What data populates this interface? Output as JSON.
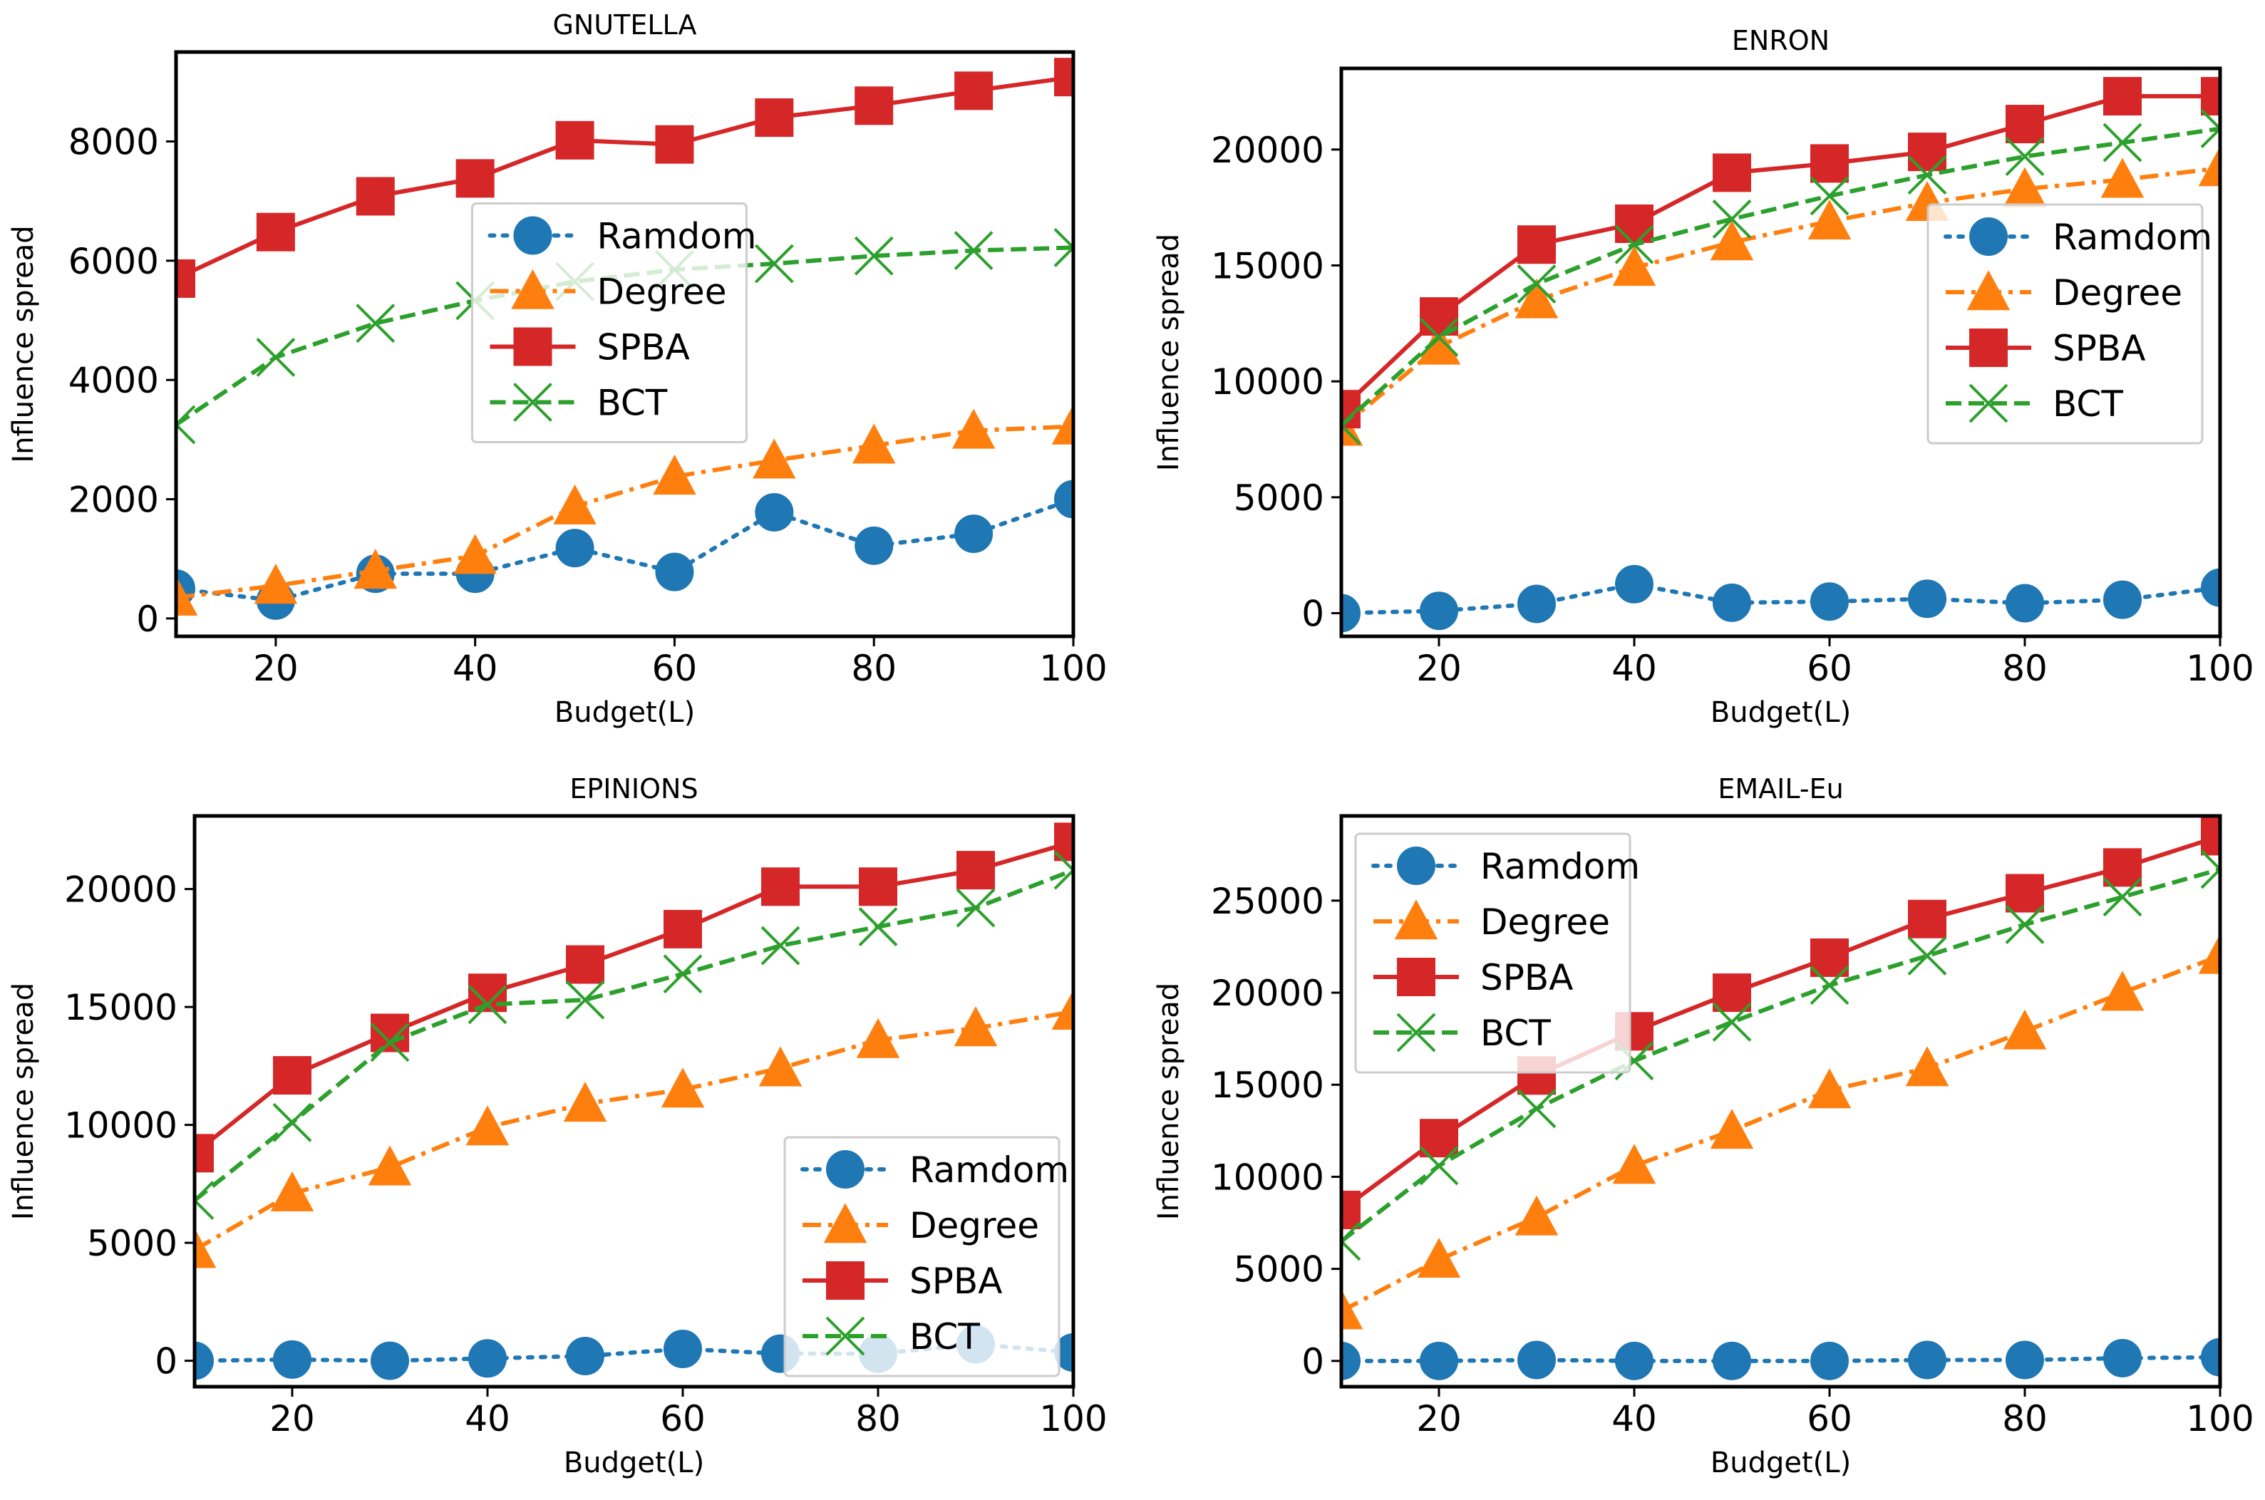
{
  "figure": {
    "background": "#ffffff"
  },
  "legend_series": [
    {
      "key": "random",
      "name": "Ramdom",
      "color": "#1f77b4",
      "marker": "circle",
      "dash": "dotted"
    },
    {
      "key": "degree",
      "name": "Degree",
      "color": "#ff7f0e",
      "marker": "triangle",
      "dash": "dashdot"
    },
    {
      "key": "spba",
      "name": "SPBA",
      "color": "#d62728",
      "marker": "square",
      "dash": "solid"
    },
    {
      "key": "bct",
      "name": "BCT",
      "color": "#2ca02c",
      "marker": "x",
      "dash": "dashed"
    }
  ],
  "chart_data": [
    {
      "type": "line",
      "title": "GNUTELLA",
      "xlabel": "Budget(L)",
      "ylabel": "Influence spread",
      "x": [
        10,
        20,
        30,
        40,
        50,
        60,
        70,
        80,
        90,
        100
      ],
      "xlim": [
        10,
        100
      ],
      "ylim": [
        -300,
        9500
      ],
      "xticks": [
        20,
        40,
        60,
        80,
        100
      ],
      "yticks": [
        0,
        2000,
        4000,
        6000,
        8000
      ],
      "legend_loc": "center",
      "series": [
        {
          "key": "random",
          "name": "Ramdom",
          "values": [
            500,
            300,
            750,
            750,
            1180,
            780,
            1780,
            1220,
            1420,
            2000
          ]
        },
        {
          "key": "degree",
          "name": "Degree",
          "values": [
            350,
            550,
            800,
            1050,
            1880,
            2380,
            2650,
            2900,
            3150,
            3220
          ]
        },
        {
          "key": "spba",
          "name": "SPBA",
          "values": [
            5700,
            6480,
            7080,
            7380,
            8020,
            7950,
            8400,
            8600,
            8850,
            9080
          ]
        },
        {
          "key": "bct",
          "name": "BCT",
          "values": [
            3250,
            4380,
            4950,
            5330,
            5650,
            5850,
            5950,
            6080,
            6170,
            6220
          ]
        }
      ]
    },
    {
      "type": "line",
      "title": "ENRON",
      "xlabel": "Budget(L)",
      "ylabel": "Influence spread",
      "x": [
        10,
        20,
        30,
        40,
        50,
        60,
        70,
        80,
        90,
        100
      ],
      "xlim": [
        10,
        100
      ],
      "ylim": [
        -1000,
        23500
      ],
      "xticks": [
        20,
        40,
        60,
        80,
        100
      ],
      "yticks": [
        0,
        5000,
        10000,
        15000,
        20000
      ],
      "legend_loc": "center right",
      "series": [
        {
          "key": "random",
          "name": "Ramdom",
          "values": [
            0,
            100,
            400,
            1250,
            450,
            500,
            620,
            430,
            580,
            1100
          ]
        },
        {
          "key": "degree",
          "name": "Degree",
          "values": [
            8000,
            11500,
            13500,
            14900,
            16000,
            16900,
            17700,
            18300,
            18700,
            19200
          ]
        },
        {
          "key": "spba",
          "name": "SPBA",
          "values": [
            8800,
            12800,
            15900,
            16800,
            19000,
            19400,
            19900,
            21100,
            22300,
            22300
          ]
        },
        {
          "key": "bct",
          "name": "BCT",
          "values": [
            8100,
            11900,
            14200,
            15900,
            17000,
            18000,
            18900,
            19700,
            20300,
            20900
          ]
        }
      ]
    },
    {
      "type": "line",
      "title": "EPINIONS",
      "xlabel": "Budget(L)",
      "ylabel": "Influence spread",
      "x": [
        10,
        20,
        30,
        40,
        50,
        60,
        70,
        80,
        90,
        100
      ],
      "xlim": [
        10,
        100
      ],
      "ylim": [
        -1100,
        23100
      ],
      "xticks": [
        20,
        40,
        60,
        80,
        100
      ],
      "yticks": [
        0,
        5000,
        10000,
        15000,
        20000
      ],
      "legend_loc": "lower right",
      "series": [
        {
          "key": "random",
          "name": "Ramdom",
          "values": [
            0,
            50,
            0,
            100,
            200,
            500,
            300,
            300,
            700,
            350
          ]
        },
        {
          "key": "degree",
          "name": "Degree",
          "values": [
            4700,
            7100,
            8200,
            9900,
            10900,
            11500,
            12400,
            13600,
            14100,
            14800
          ]
        },
        {
          "key": "spba",
          "name": "SPBA",
          "values": [
            8800,
            12100,
            13900,
            15600,
            16800,
            18300,
            20100,
            20100,
            20800,
            22000
          ]
        },
        {
          "key": "bct",
          "name": "BCT",
          "values": [
            6800,
            10100,
            13500,
            15100,
            15300,
            16400,
            17600,
            18400,
            19200,
            20800
          ]
        }
      ]
    },
    {
      "type": "line",
      "title": "EMAIL-Eu",
      "xlabel": "Budget(L)",
      "ylabel": "Influence spread",
      "x": [
        10,
        20,
        30,
        40,
        50,
        60,
        70,
        80,
        90,
        100
      ],
      "xlim": [
        10,
        100
      ],
      "ylim": [
        -1400,
        29600
      ],
      "xticks": [
        20,
        40,
        60,
        80,
        100
      ],
      "yticks": [
        0,
        5000,
        10000,
        15000,
        20000,
        25000
      ],
      "legend_loc": "upper left",
      "series": [
        {
          "key": "random",
          "name": "Ramdom",
          "values": [
            0,
            0,
            50,
            0,
            0,
            0,
            50,
            50,
            150,
            200
          ]
        },
        {
          "key": "degree",
          "name": "Degree",
          "values": [
            2700,
            5500,
            7800,
            10600,
            12500,
            14700,
            15900,
            17900,
            20000,
            22000
          ]
        },
        {
          "key": "spba",
          "name": "SPBA",
          "values": [
            8200,
            12100,
            15500,
            17900,
            20000,
            21900,
            24000,
            25400,
            26800,
            28500
          ]
        },
        {
          "key": "bct",
          "name": "BCT",
          "values": [
            6500,
            10600,
            13700,
            16300,
            18400,
            20400,
            22000,
            23700,
            25200,
            26700
          ]
        }
      ]
    }
  ]
}
